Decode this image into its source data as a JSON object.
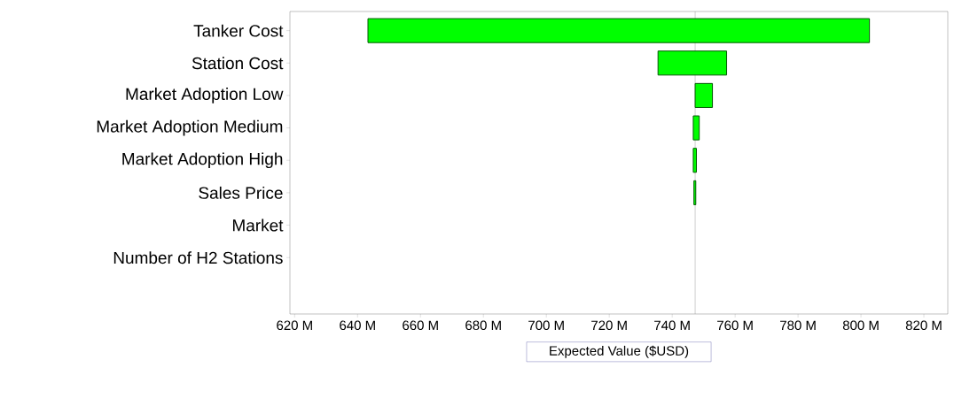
{
  "chart_data": {
    "type": "bar",
    "orientation": "horizontal",
    "xlabel": "Expected Value ($USD)",
    "categories": [
      "Tanker Cost",
      "Station Cost",
      "Market Adoption Low",
      "Market Adoption Medium",
      "Market Adoption High",
      "Sales Price",
      "Market",
      "Number of H2 Stations"
    ],
    "values": [
      159.4,
      21.8,
      5.5,
      1.9,
      1.0,
      0.6,
      null,
      null
    ],
    "base": [
      643.3,
      735.5,
      747.3,
      746.7,
      746.7,
      746.9,
      null,
      null
    ],
    "color": "#00ff00",
    "xlim": [
      618.5,
      827.6
    ],
    "xticks": [
      {
        "value": 620,
        "label": "620 M"
      },
      {
        "value": 640,
        "label": "640 M"
      },
      {
        "value": 660,
        "label": "660 M"
      },
      {
        "value": 680,
        "label": "680 M"
      },
      {
        "value": 700,
        "label": "700 M"
      },
      {
        "value": 720,
        "label": "720 M"
      },
      {
        "value": 740,
        "label": "740 M"
      },
      {
        "value": 760,
        "label": "760 M"
      },
      {
        "value": 780,
        "label": "780 M"
      },
      {
        "value": 800,
        "label": "800 M"
      },
      {
        "value": 820,
        "label": "820 M"
      }
    ],
    "ref_lines": [
      {
        "axis": "x",
        "value": 747.3
      }
    ]
  }
}
